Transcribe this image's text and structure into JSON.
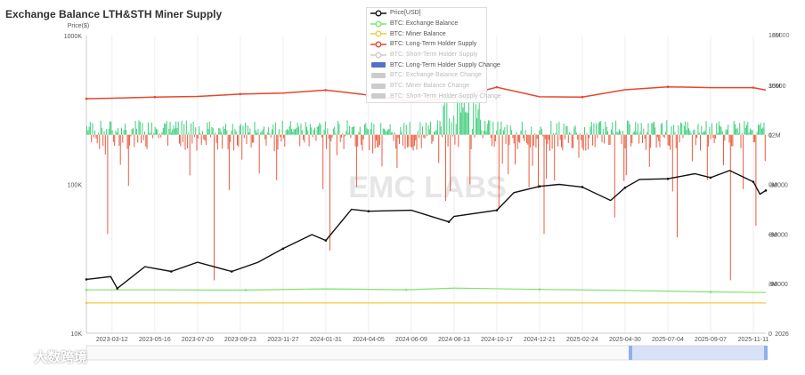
{
  "title": "Exchange Balance LTH&STH Miner Supply",
  "brand": "大数跨境",
  "colors": {
    "price": "#111111",
    "exchange_balance": "#7fe36a",
    "miner_balance": "#f4c842",
    "lth_supply": "#e8452c",
    "lth_change_pos": "#3ecf7c",
    "lth_change_neg": "#ec5b3f",
    "legend_off": "#cccccc",
    "legend_bar_on": "#5470c6",
    "slider_fill": "#c7d6f5",
    "grid": "#eeeeee",
    "watermark": "#e6e6e6"
  },
  "legend": [
    {
      "label": "Price[USD]",
      "icon": "line-circle",
      "color": "#111111",
      "active": true
    },
    {
      "label": "BTC: Exchange Balance",
      "icon": "line-circle",
      "color": "#7fe36a",
      "active": true
    },
    {
      "label": "BTC: Miner Balance",
      "icon": "line-circle",
      "color": "#f4c842",
      "active": true
    },
    {
      "label": "BTC: Long-Term Holder Supply",
      "icon": "line-circle",
      "color": "#e8452c",
      "active": true
    },
    {
      "label": "BTC: Short-Term Holder Supply",
      "icon": "line-circle",
      "color": "#cccccc",
      "active": false
    },
    {
      "label": "BTC: Long-Term Holder Supply Change",
      "icon": "bar",
      "color": "#5470c6",
      "active": true
    },
    {
      "label": "BTC: Exchange Balance Change",
      "icon": "bar",
      "color": "#cccccc",
      "active": false
    },
    {
      "label": "BTC: Miner Balance Change",
      "icon": "bar",
      "color": "#cccccc",
      "active": false
    },
    {
      "label": "BTC: Short-Term Holder Supply Change",
      "icon": "bar",
      "color": "#cccccc",
      "active": false
    }
  ],
  "chart_data": {
    "type": "line",
    "title": "Exchange Balance LTH&STH Miner Supply",
    "watermark": "EMC LABS",
    "x_labels": [
      "2023-03-12",
      "2023-05-16",
      "2023-07-20",
      "2023-09-23",
      "2023-11-27",
      "2024-01-31",
      "2024-04-05",
      "2024-06-09",
      "2024-08-13",
      "2024-10-17",
      "2024-12-21",
      "2025-02-24",
      "2025-04-30",
      "2025-07-04",
      "2025-09-07",
      "2025-11-11"
    ],
    "x_label_tail": "2026",
    "y_axis_left": {
      "name": "Price($)",
      "scale": "log",
      "ticks": [
        "1000K",
        "100K",
        "10K"
      ],
      "min": 10000,
      "max": 1000000
    },
    "y_axis_right_change": {
      "ticks": [
        "30000",
        "0",
        "-30000",
        "-60000",
        "-90000"
      ],
      "min": -120000,
      "max": 60000
    },
    "y_axis_right_supply": {
      "ticks": [
        "15M",
        "12M",
        "9M",
        "6M",
        "3M",
        "0"
      ],
      "min": 0,
      "max": 18000000
    },
    "right_top_overlap_labels": [
      "18M",
      "60000"
    ],
    "series": [
      {
        "name": "Price[USD]",
        "axis": "left",
        "style": "line",
        "x": [
          "2023-02-01",
          "2023-03-10",
          "2023-03-20",
          "2023-05-01",
          "2023-06-10",
          "2023-07-20",
          "2023-09-10",
          "2023-10-20",
          "2023-11-27",
          "2024-01-10",
          "2024-01-31",
          "2024-03-10",
          "2024-04-05",
          "2024-06-09",
          "2024-08-05",
          "2024-08-13",
          "2024-10-17",
          "2024-11-12",
          "2024-12-21",
          "2025-01-20",
          "2025-02-24",
          "2025-04-08",
          "2025-04-30",
          "2025-05-22",
          "2025-07-04",
          "2025-08-14",
          "2025-09-07",
          "2025-10-06",
          "2025-11-11",
          "2025-11-21",
          "2025-11-30"
        ],
        "values": [
          23000,
          24000,
          20000,
          28000,
          26000,
          30000,
          26000,
          30000,
          37000,
          46000,
          42000,
          68000,
          66000,
          67000,
          56000,
          61000,
          67000,
          88000,
          97000,
          100000,
          96000,
          78000,
          95000,
          108000,
          109000,
          118000,
          111000,
          124000,
          104000,
          86000,
          91000
        ]
      },
      {
        "name": "BTC: Long-Term Holder Supply",
        "axis": "right_supply",
        "style": "line",
        "x": [
          "2023-02-01",
          "2023-03-12",
          "2023-05-16",
          "2023-07-20",
          "2023-09-23",
          "2023-11-27",
          "2024-01-31",
          "2024-04-05",
          "2024-06-09",
          "2024-08-13",
          "2024-10-17",
          "2024-12-21",
          "2025-02-24",
          "2025-04-30",
          "2025-07-04",
          "2025-09-07",
          "2025-11-11",
          "2025-11-30"
        ],
        "values": [
          14180000,
          14210000,
          14280000,
          14320000,
          14460000,
          14520000,
          14700000,
          14400000,
          14000000,
          14220000,
          14880000,
          14300000,
          14280000,
          14720000,
          14900000,
          14850000,
          14850000,
          14700000
        ]
      },
      {
        "name": "BTC: Exchange Balance",
        "axis": "right_supply",
        "style": "line",
        "x": [
          "2023-02-01",
          "2023-06-01",
          "2023-10-01",
          "2024-02-01",
          "2024-06-01",
          "2024-08-13",
          "2024-12-21",
          "2025-04-30",
          "2025-09-07",
          "2025-11-30"
        ],
        "values": [
          2620000,
          2620000,
          2610000,
          2680000,
          2630000,
          2730000,
          2650000,
          2590000,
          2500000,
          2460000
        ]
      },
      {
        "name": "BTC: Miner Balance",
        "axis": "right_supply",
        "style": "line",
        "x": [
          "2023-02-01",
          "2025-11-30"
        ],
        "values": [
          1830000,
          1830000
        ]
      },
      {
        "name": "BTC: Long-Term Holder Supply Change",
        "axis": "right_change",
        "style": "bar",
        "summary": "daily change, ranging approx. -90000 to +30000"
      }
    ],
    "legend_position": "top-center",
    "grid": true
  }
}
